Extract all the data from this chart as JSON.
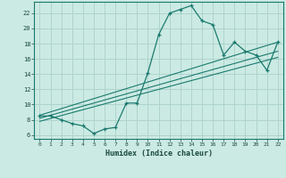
{
  "title": "",
  "xlabel": "Humidex (Indice chaleur)",
  "ylabel": "",
  "bg_color": "#cceae4",
  "line_color": "#1a7a6e",
  "grid_color": "#aed4cc",
  "xlim": [
    -0.5,
    22.5
  ],
  "ylim": [
    5.5,
    23.5
  ],
  "xticks": [
    0,
    1,
    2,
    3,
    4,
    5,
    6,
    7,
    8,
    9,
    10,
    11,
    12,
    13,
    14,
    15,
    16,
    17,
    18,
    19,
    20,
    21,
    22
  ],
  "yticks": [
    6,
    8,
    10,
    12,
    14,
    16,
    18,
    20,
    22
  ],
  "curve_x": [
    0,
    1,
    2,
    3,
    4,
    5,
    6,
    7,
    8,
    9,
    10,
    11,
    12,
    13,
    14,
    15,
    16,
    17,
    18,
    19,
    20,
    21,
    22
  ],
  "curve_y": [
    8.5,
    8.5,
    8.0,
    7.5,
    7.2,
    6.2,
    6.8,
    7.0,
    10.2,
    10.2,
    14.2,
    19.2,
    22.0,
    22.5,
    23.0,
    21.0,
    20.5,
    16.5,
    18.2,
    17.0,
    16.5,
    14.5,
    18.2
  ],
  "line1_x": [
    0,
    22
  ],
  "line1_y": [
    8.2,
    17.0
  ],
  "line2_x": [
    0,
    22
  ],
  "line2_y": [
    7.8,
    16.2
  ],
  "line3_x": [
    0,
    22
  ],
  "line3_y": [
    8.6,
    18.2
  ]
}
